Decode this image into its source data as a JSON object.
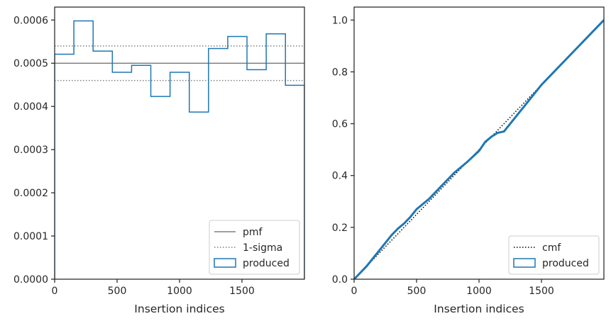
{
  "chart_data": [
    {
      "type": "line",
      "title": "",
      "xlabel": "Insertion indices",
      "ylabel": "",
      "xlim": [
        0,
        2000
      ],
      "ylim": [
        0,
        0.00063
      ],
      "grid": false,
      "legend_position": "bottom-right",
      "xticks": [
        0,
        500,
        1000,
        1500
      ],
      "xtick_labels": [
        "0",
        "500",
        "1000",
        "1500"
      ],
      "yticks": [
        0,
        0.0001,
        0.0002,
        0.0003,
        0.0004,
        0.0005,
        0.0006
      ],
      "ytick_labels": [
        "0.0000",
        "0.0001",
        "0.0002",
        "0.0003",
        "0.0004",
        "0.0005",
        "0.0006"
      ],
      "series": [
        {
          "name": "pmf",
          "kind": "hline",
          "y": 0.0005,
          "color": "#808080",
          "style": "solid"
        },
        {
          "name": "1-sigma",
          "kind": "hlines",
          "y": [
            0.00054,
            0.00046
          ],
          "color": "#808080",
          "style": "dotted"
        },
        {
          "name": "produced",
          "kind": "step",
          "color": "#1f77b4",
          "bin_edges": [
            0,
            154,
            308,
            462,
            616,
            770,
            924,
            1078,
            1232,
            1386,
            1540,
            1694,
            1848,
            2000
          ],
          "values": [
            0.000521,
            0.000598,
            0.000528,
            0.000479,
            0.000495,
            0.000423,
            0.000479,
            0.000387,
            0.000534,
            0.000562,
            0.000485,
            0.000568,
            0.000449
          ]
        }
      ]
    },
    {
      "type": "line",
      "title": "",
      "xlabel": "Insertion indices",
      "ylabel": "",
      "xlim": [
        0,
        2000
      ],
      "ylim": [
        0,
        1.05
      ],
      "grid": false,
      "legend_position": "bottom-right",
      "xticks": [
        0,
        500,
        1000,
        1500
      ],
      "xtick_labels": [
        "0",
        "500",
        "1000",
        "1500"
      ],
      "yticks": [
        0,
        0.2,
        0.4,
        0.6,
        0.8,
        1.0
      ],
      "ytick_labels": [
        "0.0",
        "0.2",
        "0.4",
        "0.6",
        "0.8",
        "1.0"
      ],
      "series": [
        {
          "name": "cmf",
          "kind": "line",
          "x": [
            0,
            2000
          ],
          "y": [
            0,
            1.0
          ],
          "color": "#000000",
          "style": "dotted"
        },
        {
          "name": "produced",
          "kind": "line",
          "color": "#1f77b4",
          "x": [
            0,
            50,
            100,
            150,
            200,
            250,
            300,
            350,
            400,
            450,
            500,
            600,
            700,
            800,
            900,
            1000,
            1050,
            1100,
            1150,
            1200,
            1250,
            1300,
            1400,
            1500,
            1600,
            1700,
            1800,
            1900,
            2000
          ],
          "y": [
            0,
            0.025,
            0.05,
            0.08,
            0.11,
            0.14,
            0.17,
            0.195,
            0.215,
            0.24,
            0.27,
            0.31,
            0.36,
            0.41,
            0.45,
            0.495,
            0.53,
            0.55,
            0.565,
            0.57,
            0.6,
            0.63,
            0.69,
            0.75,
            0.8,
            0.85,
            0.9,
            0.95,
            1.0
          ]
        }
      ]
    }
  ]
}
